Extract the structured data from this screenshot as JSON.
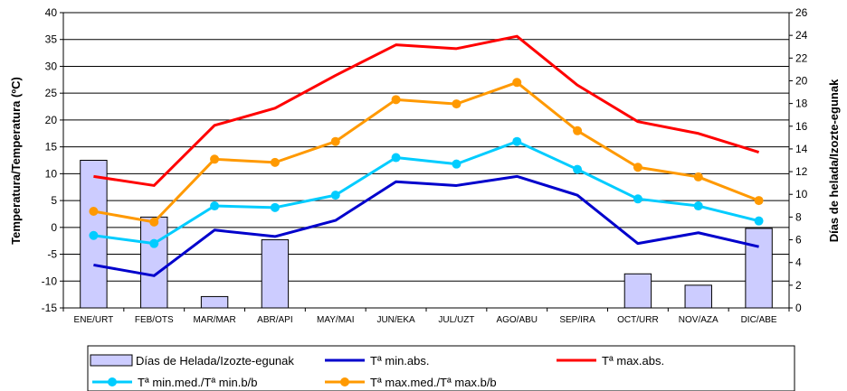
{
  "chart_data": {
    "type": "bar",
    "categories": [
      "ENE/URT",
      "FEB/OTS",
      "MAR/MAR",
      "ABR/API",
      "MAY/MAI",
      "JUN/EKA",
      "JUL/UZT",
      "AGO/ABU",
      "SEP/IRA",
      "OCT/URR",
      "NOV/AZA",
      "DIC/ABE"
    ],
    "ylabel": "Temperatura/Temperatura (ºC)",
    "y2label": "Días de helada/Izozte-egunak",
    "ylim": [
      -15,
      40
    ],
    "yticks": [
      "-15",
      "-10",
      "-5",
      "0",
      "5",
      "10",
      "15",
      "20",
      "25",
      "30",
      "35",
      "40"
    ],
    "y2lim": [
      0,
      26
    ],
    "y2ticks": [
      "0",
      "2",
      "4",
      "6",
      "8",
      "10",
      "12",
      "14",
      "16",
      "18",
      "20",
      "22",
      "24",
      "26"
    ],
    "grid": true,
    "legend_position": "bottom",
    "bars": {
      "name": "Días de Helada/Izozte-egunak",
      "axis": "right",
      "color": "#ccccff",
      "values": [
        13,
        8,
        1,
        6,
        0,
        0,
        0,
        0,
        0,
        3,
        2,
        7
      ]
    },
    "series": [
      {
        "name": "Tª min.abs.",
        "color": "#0000cc",
        "marker": "none",
        "values": [
          -7,
          -9,
          -0.5,
          -1.7,
          1.3,
          8.5,
          7.8,
          9.5,
          6,
          -3,
          -1,
          -3.6
        ]
      },
      {
        "name": "Tª max.abs.",
        "color": "#ff0000",
        "marker": "none",
        "values": [
          9.5,
          7.8,
          19,
          22.2,
          28.3,
          34,
          33.3,
          35.6,
          26.5,
          19.7,
          17.5,
          14
        ]
      },
      {
        "name": "Tª min.med./Tª min.b/b",
        "color": "#00ccff",
        "marker": "circle",
        "values": [
          -1.5,
          -3,
          4,
          3.7,
          6,
          13,
          11.8,
          16,
          10.8,
          5.3,
          4,
          1.2
        ]
      },
      {
        "name": "Tª max.med./Tª max.b/b",
        "color": "#ff9900",
        "marker": "circle",
        "values": [
          3,
          1,
          12.7,
          12.1,
          16,
          23.8,
          23,
          27,
          18,
          11.2,
          9.4,
          5
        ]
      }
    ]
  }
}
